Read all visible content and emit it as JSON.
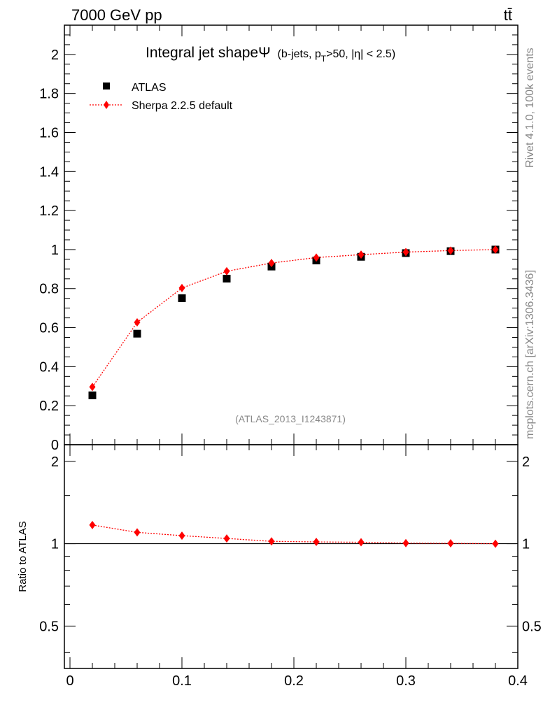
{
  "header": {
    "energy_label": "7000 GeV pp",
    "process_label": "tt̄"
  },
  "side_text": {
    "rivet": "Rivet 4.1.0,  100k events",
    "source": "mcplots.cern.ch [arXiv:1306.3436]"
  },
  "colors": {
    "data": "#000000",
    "mc": "#ff0000",
    "reference_line": "#000000",
    "watermark": "#888888"
  },
  "chart_data": [
    {
      "type": "scatter",
      "title": "Integral jet shapeΨ",
      "title_detail": {
        "prefix": "(b-jets, p",
        "subscript": "T",
        "suffix": ">50, |η| < 2.5)"
      },
      "analysis_label": "(ATLAS_2013_I1243871)",
      "xlabel": "",
      "ylabel": "",
      "xlim": [
        -0.005,
        0.4
      ],
      "ylim": [
        0,
        2.15
      ],
      "x_ticks": [
        "0",
        "0.1",
        "0.2",
        "0.3",
        "0.4"
      ],
      "y_ticks": [
        "0",
        "0.2",
        "0.4",
        "0.6",
        "0.8",
        "1",
        "1.2",
        "1.4",
        "1.6",
        "1.8",
        "2"
      ],
      "legend": [
        "ATLAS",
        "Sherpa 2.2.5 default"
      ],
      "legend_position": "top-left",
      "series": [
        {
          "name": "ATLAS",
          "marker": "square",
          "x": [
            0.02,
            0.06,
            0.1,
            0.14,
            0.18,
            0.22,
            0.26,
            0.3,
            0.34,
            0.38
          ],
          "y": [
            0.253,
            0.569,
            0.751,
            0.851,
            0.913,
            0.944,
            0.963,
            0.982,
            0.992,
            1.0
          ]
        },
        {
          "name": "Sherpa 2.2.5 default",
          "marker": "diamond",
          "line": "dotted",
          "x": [
            0.02,
            0.06,
            0.1,
            0.14,
            0.18,
            0.22,
            0.26,
            0.3,
            0.34,
            0.38
          ],
          "y": [
            0.296,
            0.627,
            0.803,
            0.889,
            0.931,
            0.959,
            0.974,
            0.987,
            0.995,
            1.0
          ]
        }
      ]
    },
    {
      "type": "line",
      "title": "",
      "xlabel": "",
      "ylabel": "Ratio to ATLAS",
      "scale": "log",
      "xlim": [
        -0.005,
        0.4
      ],
      "ylim": [
        0.35,
        2.3
      ],
      "x_ticks": [
        "0",
        "0.1",
        "0.2",
        "0.3",
        "0.4"
      ],
      "y_ticks": [
        "0.5",
        "1",
        "2"
      ],
      "reference": 1,
      "series": [
        {
          "name": "Sherpa 2.2.5 default",
          "marker": "diamond",
          "line": "dotted",
          "x": [
            0.02,
            0.06,
            0.1,
            0.14,
            0.18,
            0.22,
            0.26,
            0.3,
            0.34,
            0.38
          ],
          "y": [
            1.17,
            1.1,
            1.07,
            1.045,
            1.02,
            1.015,
            1.012,
            1.005,
            1.003,
            1.0
          ]
        }
      ]
    }
  ]
}
